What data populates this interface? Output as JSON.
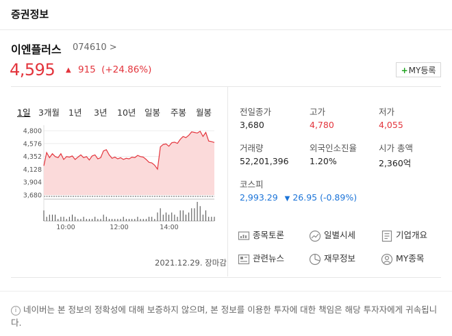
{
  "header": {
    "title": "증권정보"
  },
  "stock": {
    "name": "이엔플러스",
    "code": "074610 >",
    "price": "4,595",
    "change_arrow": "▲",
    "change": "915",
    "change_pct": "(+24.86%)",
    "my_button": "MY등록"
  },
  "tabs": [
    "1일",
    "3개월",
    "1년",
    "3년",
    "10년",
    "일봉",
    "주봉",
    "월봉"
  ],
  "chart_data": {
    "type": "area",
    "y_ticks": [
      "4,800",
      "4,576",
      "4,352",
      "4,128",
      "3,904",
      "3,680"
    ],
    "x_ticks": [
      "10:00",
      "12:00",
      "14:00"
    ],
    "ylim": [
      3680,
      4800
    ],
    "x": [
      0,
      1,
      2,
      3,
      4,
      5,
      6,
      7,
      8,
      9,
      10,
      11,
      12,
      13,
      14,
      15,
      16,
      17,
      18,
      19,
      20,
      21,
      22,
      23,
      24,
      25,
      26,
      27,
      28,
      29,
      30,
      31,
      32,
      33,
      34,
      35,
      36,
      37,
      38,
      39,
      40,
      41,
      42,
      43,
      44,
      45,
      46,
      47,
      48,
      49,
      50,
      51,
      52,
      53,
      54,
      55,
      56,
      57,
      58,
      59,
      60
    ],
    "values": [
      4190,
      4420,
      4330,
      4400,
      4350,
      4330,
      4400,
      4300,
      4350,
      4340,
      4360,
      4300,
      4340,
      4380,
      4330,
      4350,
      4290,
      4360,
      4380,
      4310,
      4330,
      4450,
      4470,
      4380,
      4320,
      4340,
      4310,
      4330,
      4300,
      4320,
      4310,
      4340,
      4330,
      4370,
      4350,
      4340,
      4300,
      4250,
      4240,
      4200,
      4130,
      4520,
      4560,
      4570,
      4530,
      4590,
      4600,
      4580,
      4650,
      4700,
      4680,
      4720,
      4780,
      4770,
      4760,
      4790,
      4700,
      4770,
      4620,
      4610,
      4595
    ],
    "volume": [
      5,
      2,
      3,
      3,
      3,
      1,
      2,
      2,
      1,
      2,
      3,
      2,
      1,
      1,
      2,
      1,
      1,
      1,
      2,
      1,
      1,
      3,
      2,
      1,
      1,
      1,
      1,
      1,
      2,
      1,
      1,
      1,
      1,
      2,
      1,
      1,
      1,
      2,
      2,
      1,
      4,
      6,
      3,
      4,
      3,
      4,
      3,
      2,
      5,
      5,
      3,
      4,
      6,
      6,
      9,
      7,
      3,
      5,
      2,
      2,
      2
    ]
  },
  "date_label": "2021.12.29. 장마감",
  "stats": [
    {
      "label": "전일종가",
      "value": "3,680",
      "tone": "normal"
    },
    {
      "label": "고가",
      "value": "4,780",
      "tone": "red"
    },
    {
      "label": "저가",
      "value": "4,055",
      "tone": "red"
    },
    {
      "label": "거래량",
      "value": "52,201,396",
      "tone": "normal"
    },
    {
      "label": "외국인소진율",
      "value": "1.20%",
      "tone": "normal"
    },
    {
      "label": "시가 총액",
      "value": "2,360억",
      "tone": "normal"
    }
  ],
  "index": {
    "label": "코스피",
    "value": "2,993.29",
    "arrow": "▼",
    "change": "26.95 (-0.89%)"
  },
  "links": [
    {
      "label": "종목토론",
      "icon": "discussion-icon"
    },
    {
      "label": "일별시세",
      "icon": "daily-price-icon"
    },
    {
      "label": "기업개요",
      "icon": "company-overview-icon"
    },
    {
      "label": "관련뉴스",
      "icon": "news-icon"
    },
    {
      "label": "재무정보",
      "icon": "financial-icon"
    },
    {
      "label": "MY종목",
      "icon": "my-stock-icon"
    }
  ],
  "notice": "네이버는 본 정보의 정확성에 대해 보증하지 않으며, 본 정보를 이용한 투자에 대한 책임은 해당 투자자에게 귀속됩니다.",
  "colors": {
    "up": "#e3343c",
    "down": "#1a73d8",
    "accent_green": "#1ea31e"
  }
}
